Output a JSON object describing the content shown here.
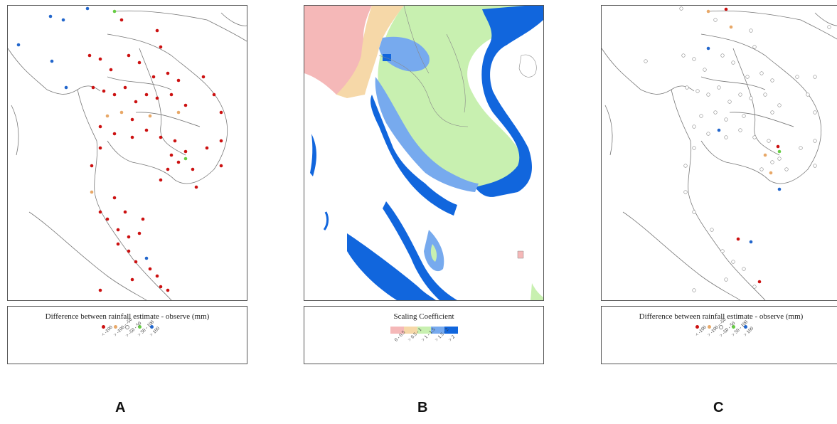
{
  "panels": [
    {
      "label": "A",
      "legend_title": "Difference between rainfall estimate - observe (mm)",
      "legend_items": [
        {
          "label": "< -100",
          "color": "#cc1111"
        },
        {
          "label": "> -100 - -50",
          "color": "#e8a868"
        },
        {
          "label": "> -50 - 50",
          "color": "#ffffff"
        },
        {
          "label": "> 50 - 100",
          "color": "#66cc44"
        },
        {
          "label": "> 100",
          "color": "#2266cc"
        }
      ]
    },
    {
      "label": "B",
      "legend_title": "Scaling Coefficient",
      "legend_items": [
        {
          "label": "0 - 0.5",
          "color": "#f5b8b8"
        },
        {
          "label": "> 0.5 - 1",
          "color": "#f6d8a8"
        },
        {
          "label": "> 1 - 1.5",
          "color": "#c8f0b0"
        },
        {
          "label": "> 1.5 - 2",
          "color": "#77aaee"
        },
        {
          "label": "> 2",
          "color": "#1166dd"
        }
      ]
    },
    {
      "label": "C",
      "legend_title": "Difference between rainfall estimate - observe (mm)",
      "legend_items": [
        {
          "label": "< -100",
          "color": "#cc1111"
        },
        {
          "label": "> -100 - -50",
          "color": "#e8a868"
        },
        {
          "label": "> -50 - 50",
          "color": "#ffffff"
        },
        {
          "label": "> 50 - 100",
          "color": "#66cc44"
        },
        {
          "label": "> 100",
          "color": "#2266cc"
        }
      ]
    }
  ]
}
